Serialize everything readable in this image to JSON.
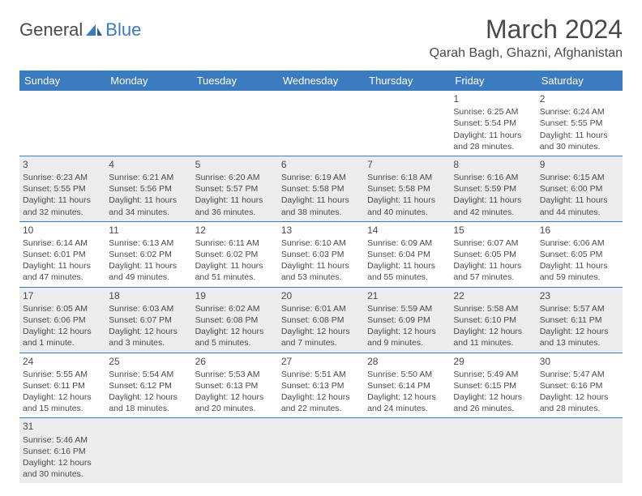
{
  "logo": {
    "text1": "General",
    "text2": "Blue",
    "color1": "#4a4a4a",
    "color2": "#3b7bbf"
  },
  "header": {
    "title": "March 2024",
    "location": "Qarah Bagh, Ghazni, Afghanistan"
  },
  "styling": {
    "header_bg": "#3b7bbf",
    "header_text": "#ffffff",
    "row_divider": "#3b7bbf",
    "shaded_bg": "#ececec",
    "text_color": "#4a4a4a",
    "title_fontsize": 32,
    "location_fontsize": 16,
    "dayheader_fontsize": 13,
    "cell_fontsize": 10.5
  },
  "dayNames": [
    "Sunday",
    "Monday",
    "Tuesday",
    "Wednesday",
    "Thursday",
    "Friday",
    "Saturday"
  ],
  "weeks": [
    [
      null,
      null,
      null,
      null,
      null,
      {
        "n": "1",
        "sr": "Sunrise: 6:25 AM",
        "ss": "Sunset: 5:54 PM",
        "dl": "Daylight: 11 hours and 28 minutes."
      },
      {
        "n": "2",
        "sr": "Sunrise: 6:24 AM",
        "ss": "Sunset: 5:55 PM",
        "dl": "Daylight: 11 hours and 30 minutes."
      }
    ],
    [
      {
        "n": "3",
        "sr": "Sunrise: 6:23 AM",
        "ss": "Sunset: 5:55 PM",
        "dl": "Daylight: 11 hours and 32 minutes."
      },
      {
        "n": "4",
        "sr": "Sunrise: 6:21 AM",
        "ss": "Sunset: 5:56 PM",
        "dl": "Daylight: 11 hours and 34 minutes."
      },
      {
        "n": "5",
        "sr": "Sunrise: 6:20 AM",
        "ss": "Sunset: 5:57 PM",
        "dl": "Daylight: 11 hours and 36 minutes."
      },
      {
        "n": "6",
        "sr": "Sunrise: 6:19 AM",
        "ss": "Sunset: 5:58 PM",
        "dl": "Daylight: 11 hours and 38 minutes."
      },
      {
        "n": "7",
        "sr": "Sunrise: 6:18 AM",
        "ss": "Sunset: 5:58 PM",
        "dl": "Daylight: 11 hours and 40 minutes."
      },
      {
        "n": "8",
        "sr": "Sunrise: 6:16 AM",
        "ss": "Sunset: 5:59 PM",
        "dl": "Daylight: 11 hours and 42 minutes."
      },
      {
        "n": "9",
        "sr": "Sunrise: 6:15 AM",
        "ss": "Sunset: 6:00 PM",
        "dl": "Daylight: 11 hours and 44 minutes."
      }
    ],
    [
      {
        "n": "10",
        "sr": "Sunrise: 6:14 AM",
        "ss": "Sunset: 6:01 PM",
        "dl": "Daylight: 11 hours and 47 minutes."
      },
      {
        "n": "11",
        "sr": "Sunrise: 6:13 AM",
        "ss": "Sunset: 6:02 PM",
        "dl": "Daylight: 11 hours and 49 minutes."
      },
      {
        "n": "12",
        "sr": "Sunrise: 6:11 AM",
        "ss": "Sunset: 6:02 PM",
        "dl": "Daylight: 11 hours and 51 minutes."
      },
      {
        "n": "13",
        "sr": "Sunrise: 6:10 AM",
        "ss": "Sunset: 6:03 PM",
        "dl": "Daylight: 11 hours and 53 minutes."
      },
      {
        "n": "14",
        "sr": "Sunrise: 6:09 AM",
        "ss": "Sunset: 6:04 PM",
        "dl": "Daylight: 11 hours and 55 minutes."
      },
      {
        "n": "15",
        "sr": "Sunrise: 6:07 AM",
        "ss": "Sunset: 6:05 PM",
        "dl": "Daylight: 11 hours and 57 minutes."
      },
      {
        "n": "16",
        "sr": "Sunrise: 6:06 AM",
        "ss": "Sunset: 6:05 PM",
        "dl": "Daylight: 11 hours and 59 minutes."
      }
    ],
    [
      {
        "n": "17",
        "sr": "Sunrise: 6:05 AM",
        "ss": "Sunset: 6:06 PM",
        "dl": "Daylight: 12 hours and 1 minute."
      },
      {
        "n": "18",
        "sr": "Sunrise: 6:03 AM",
        "ss": "Sunset: 6:07 PM",
        "dl": "Daylight: 12 hours and 3 minutes."
      },
      {
        "n": "19",
        "sr": "Sunrise: 6:02 AM",
        "ss": "Sunset: 6:08 PM",
        "dl": "Daylight: 12 hours and 5 minutes."
      },
      {
        "n": "20",
        "sr": "Sunrise: 6:01 AM",
        "ss": "Sunset: 6:08 PM",
        "dl": "Daylight: 12 hours and 7 minutes."
      },
      {
        "n": "21",
        "sr": "Sunrise: 5:59 AM",
        "ss": "Sunset: 6:09 PM",
        "dl": "Daylight: 12 hours and 9 minutes."
      },
      {
        "n": "22",
        "sr": "Sunrise: 5:58 AM",
        "ss": "Sunset: 6:10 PM",
        "dl": "Daylight: 12 hours and 11 minutes."
      },
      {
        "n": "23",
        "sr": "Sunrise: 5:57 AM",
        "ss": "Sunset: 6:11 PM",
        "dl": "Daylight: 12 hours and 13 minutes."
      }
    ],
    [
      {
        "n": "24",
        "sr": "Sunrise: 5:55 AM",
        "ss": "Sunset: 6:11 PM",
        "dl": "Daylight: 12 hours and 15 minutes."
      },
      {
        "n": "25",
        "sr": "Sunrise: 5:54 AM",
        "ss": "Sunset: 6:12 PM",
        "dl": "Daylight: 12 hours and 18 minutes."
      },
      {
        "n": "26",
        "sr": "Sunrise: 5:53 AM",
        "ss": "Sunset: 6:13 PM",
        "dl": "Daylight: 12 hours and 20 minutes."
      },
      {
        "n": "27",
        "sr": "Sunrise: 5:51 AM",
        "ss": "Sunset: 6:13 PM",
        "dl": "Daylight: 12 hours and 22 minutes."
      },
      {
        "n": "28",
        "sr": "Sunrise: 5:50 AM",
        "ss": "Sunset: 6:14 PM",
        "dl": "Daylight: 12 hours and 24 minutes."
      },
      {
        "n": "29",
        "sr": "Sunrise: 5:49 AM",
        "ss": "Sunset: 6:15 PM",
        "dl": "Daylight: 12 hours and 26 minutes."
      },
      {
        "n": "30",
        "sr": "Sunrise: 5:47 AM",
        "ss": "Sunset: 6:16 PM",
        "dl": "Daylight: 12 hours and 28 minutes."
      }
    ],
    [
      {
        "n": "31",
        "sr": "Sunrise: 5:46 AM",
        "ss": "Sunset: 6:16 PM",
        "dl": "Daylight: 12 hours and 30 minutes."
      },
      null,
      null,
      null,
      null,
      null,
      null
    ]
  ]
}
